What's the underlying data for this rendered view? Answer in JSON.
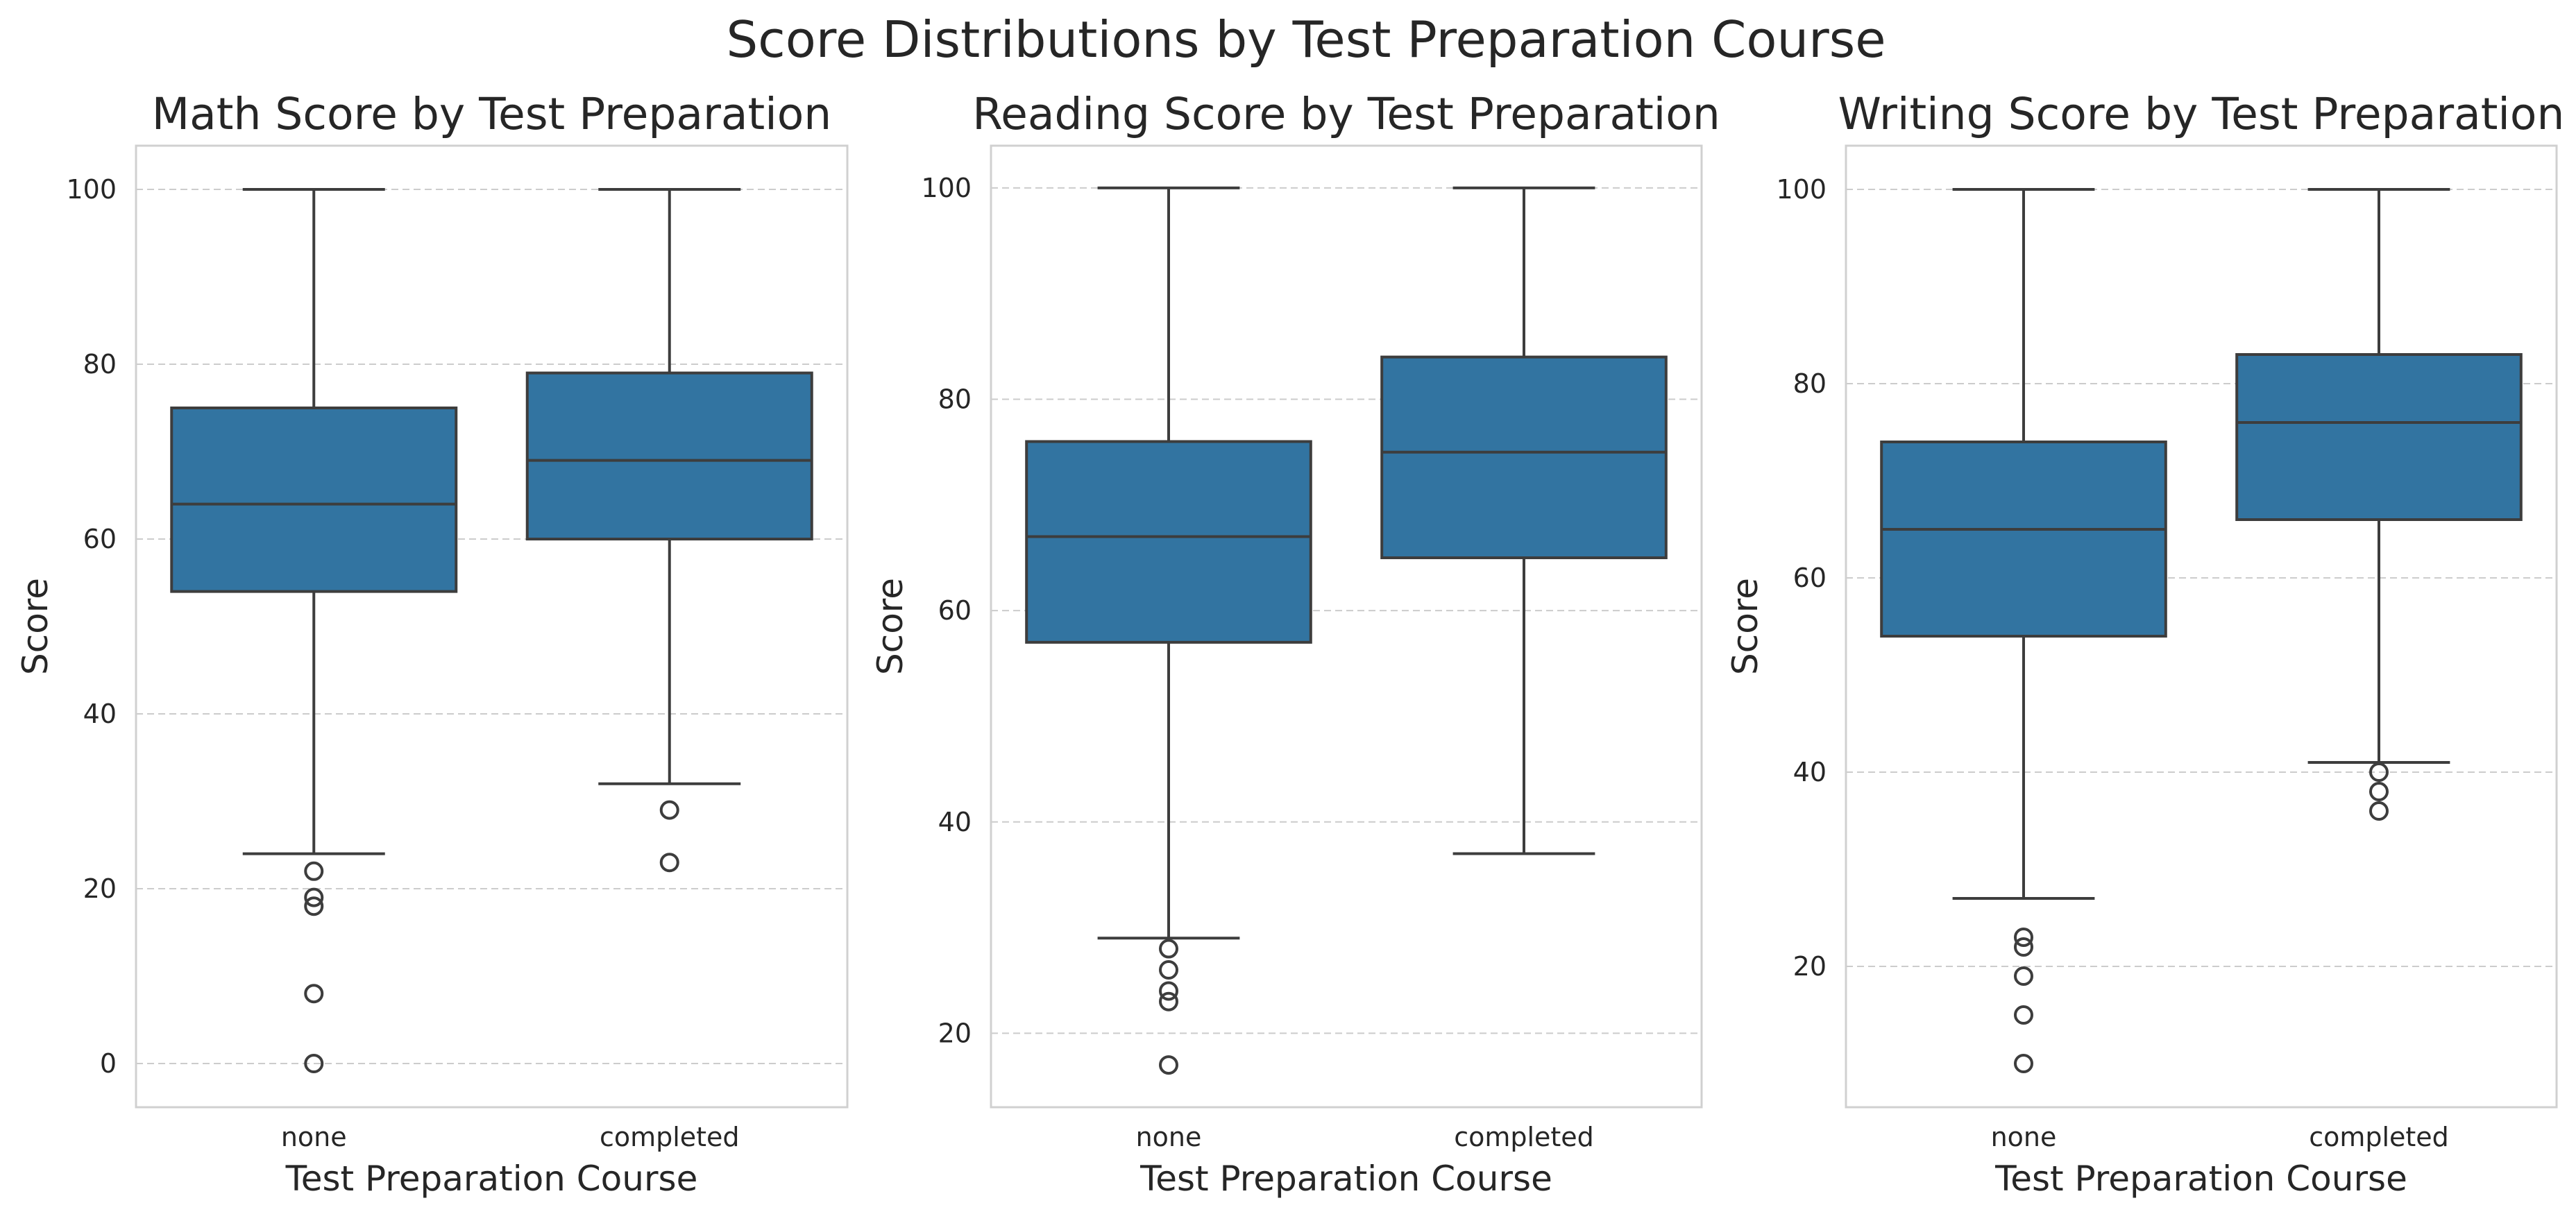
{
  "figure": {
    "suptitle": "Score Distributions by Test Preparation Course",
    "box_color": "#3274a1",
    "line_color": "#3d3d3d"
  },
  "chart_data": [
    {
      "type": "box",
      "title": "Math Score by Test Preparation",
      "xlabel": "Test Preparation Course",
      "ylabel": "Score",
      "categories": [
        "none",
        "completed"
      ],
      "ylim": [
        -5,
        105
      ],
      "yticks": [
        0,
        20,
        40,
        60,
        80,
        100
      ],
      "grid": true,
      "boxes": [
        {
          "category": "none",
          "whisker_low": 24,
          "q1": 54,
          "median": 64,
          "q3": 75,
          "whisker_high": 100,
          "outliers": [
            22,
            19,
            18,
            8,
            0
          ]
        },
        {
          "category": "completed",
          "whisker_low": 32,
          "q1": 60,
          "median": 69,
          "q3": 79,
          "whisker_high": 100,
          "outliers": [
            29,
            23
          ]
        }
      ]
    },
    {
      "type": "box",
      "title": "Reading Score by Test Preparation",
      "xlabel": "Test Preparation Course",
      "ylabel": "Score",
      "categories": [
        "none",
        "completed"
      ],
      "ylim": [
        13,
        104
      ],
      "yticks": [
        20,
        40,
        60,
        80,
        100
      ],
      "grid": true,
      "boxes": [
        {
          "category": "none",
          "whisker_low": 29,
          "q1": 57,
          "median": 67,
          "q3": 76,
          "whisker_high": 100,
          "outliers": [
            28,
            26,
            24,
            23,
            17
          ]
        },
        {
          "category": "completed",
          "whisker_low": 37,
          "q1": 65,
          "median": 75,
          "q3": 84,
          "whisker_high": 100,
          "outliers": []
        }
      ]
    },
    {
      "type": "box",
      "title": "Writing Score by Test Preparation",
      "xlabel": "Test Preparation Course",
      "ylabel": "Score",
      "categories": [
        "none",
        "completed"
      ],
      "ylim": [
        5.5,
        104.5
      ],
      "yticks": [
        20,
        40,
        60,
        80,
        100
      ],
      "grid": true,
      "boxes": [
        {
          "category": "none",
          "whisker_low": 27,
          "q1": 54,
          "median": 65,
          "q3": 74,
          "whisker_high": 100,
          "outliers": [
            23,
            22,
            19,
            15,
            10
          ]
        },
        {
          "category": "completed",
          "whisker_low": 41,
          "q1": 66,
          "median": 76,
          "q3": 83,
          "whisker_high": 100,
          "outliers": [
            40,
            38,
            36
          ]
        }
      ]
    }
  ]
}
